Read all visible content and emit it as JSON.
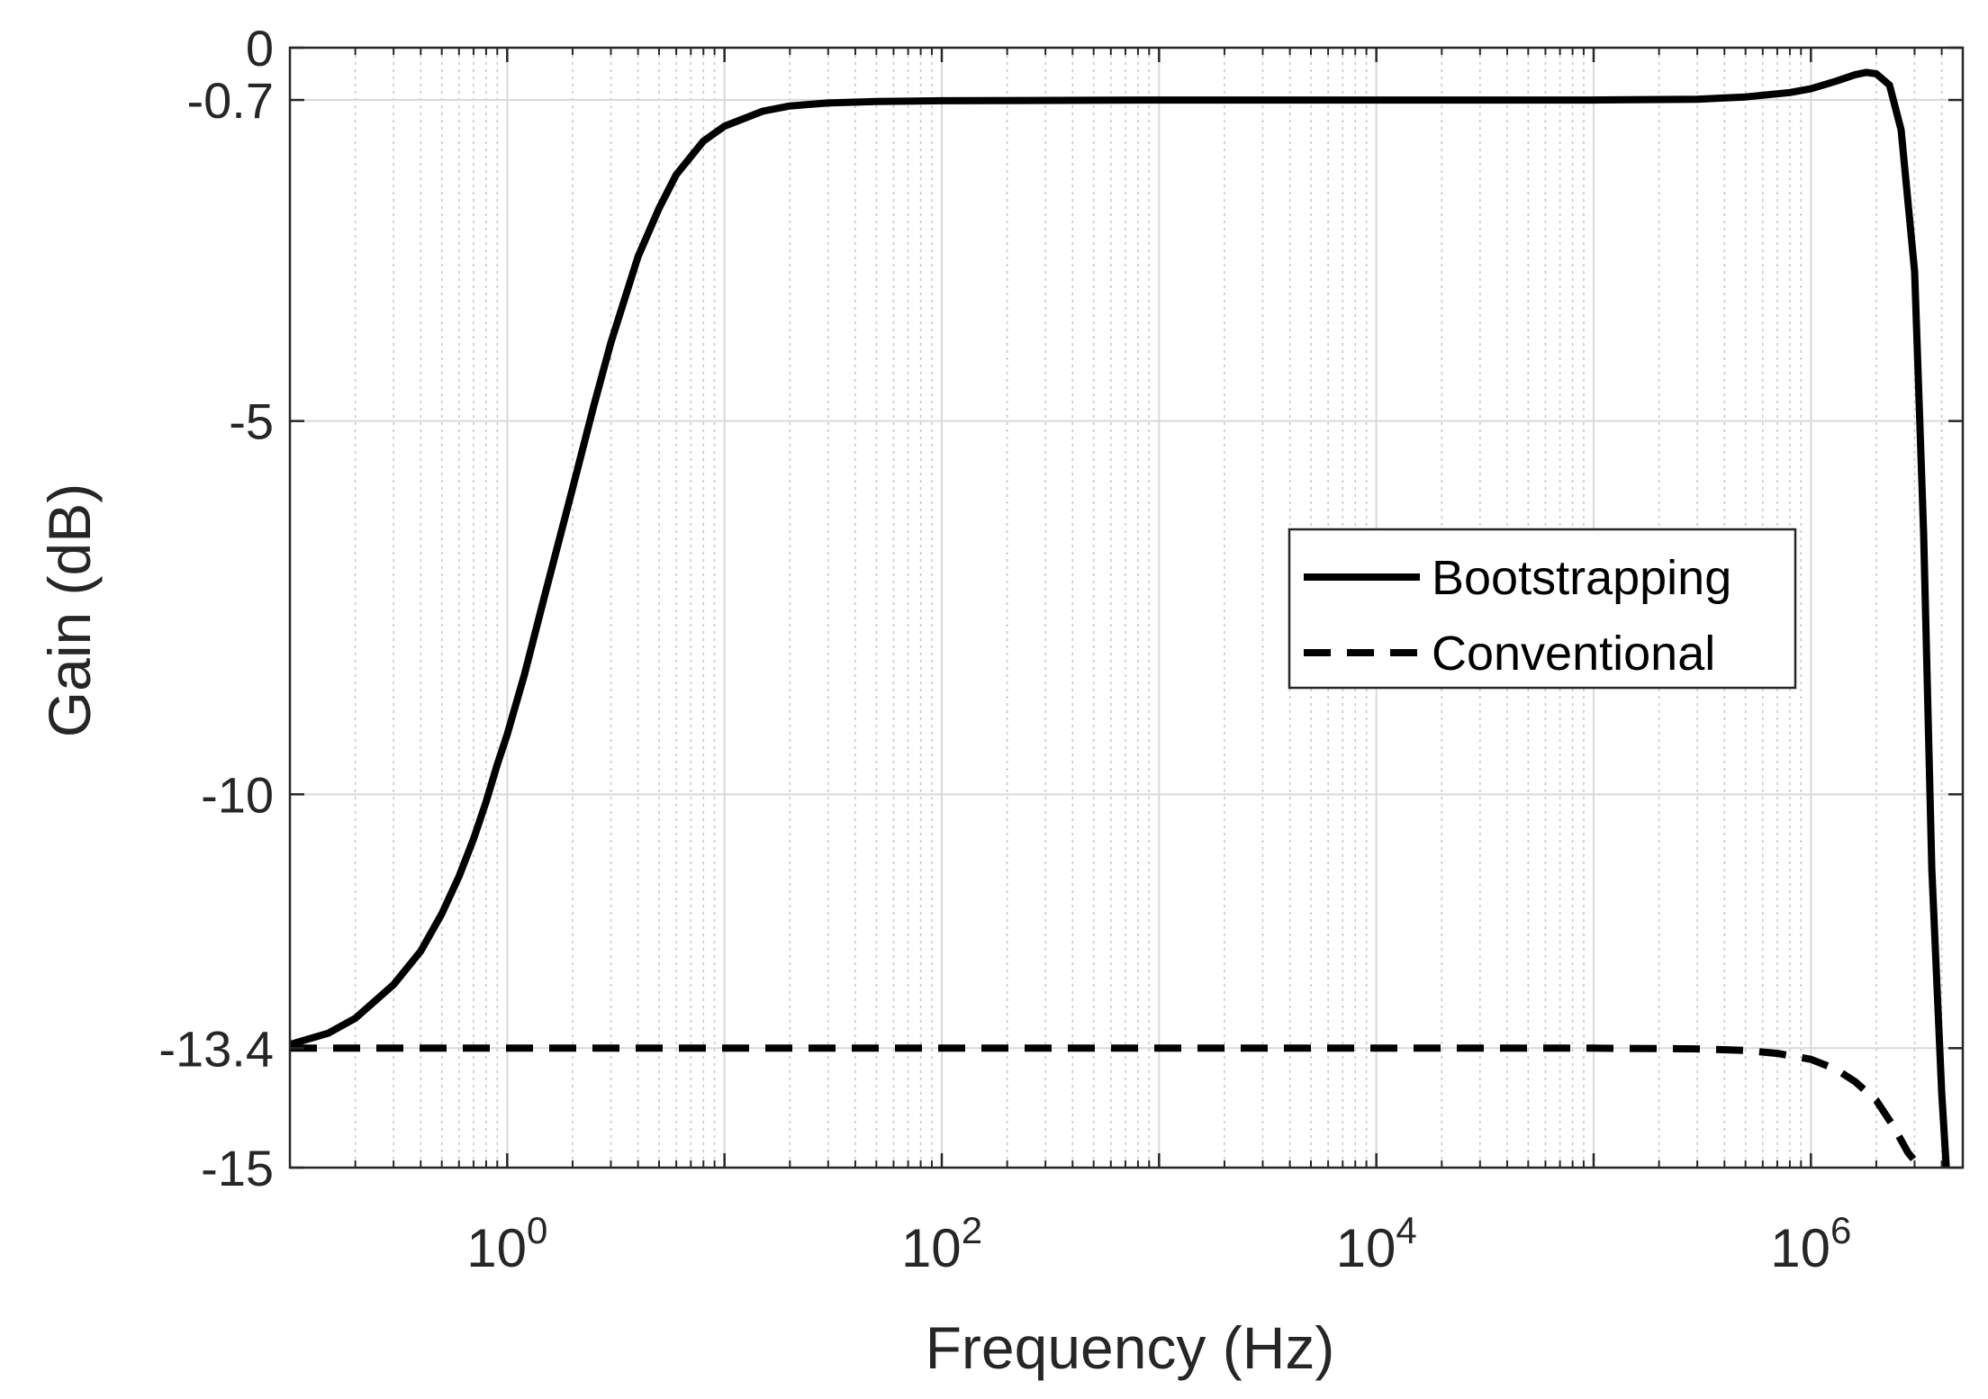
{
  "chart_data": {
    "type": "line",
    "title": "",
    "xlabel": "Frequency (Hz)",
    "ylabel": "Gain (dB)",
    "x_scale": "log",
    "xlim": [
      0.1,
      5000000
    ],
    "ylim": [
      -15,
      0
    ],
    "x_ticks": [
      {
        "value": 1,
        "base": "10",
        "exp": "0"
      },
      {
        "value": 100,
        "base": "10",
        "exp": "2"
      },
      {
        "value": 10000,
        "base": "10",
        "exp": "4"
      },
      {
        "value": 1000000,
        "base": "10",
        "exp": "6"
      }
    ],
    "y_ticks": [
      {
        "value": 0,
        "label": "0"
      },
      {
        "value": -0.7,
        "label": "-0.7"
      },
      {
        "value": -5,
        "label": "-5"
      },
      {
        "value": -10,
        "label": "-10"
      },
      {
        "value": -13.4,
        "label": "-13.4"
      },
      {
        "value": -15,
        "label": "-15"
      }
    ],
    "grid": true,
    "legend_position": "center-right",
    "series": [
      {
        "name": "Bootstrapping",
        "style": "solid",
        "color": "#000000",
        "x": [
          0.1,
          0.15,
          0.2,
          0.3,
          0.4,
          0.5,
          0.6,
          0.7,
          0.8,
          0.9,
          1,
          1.2,
          1.5,
          2,
          2.5,
          3,
          4,
          5,
          6,
          8,
          10,
          15,
          20,
          30,
          50,
          100,
          1000,
          10000,
          100000,
          300000,
          500000,
          800000,
          1000000,
          1300000,
          1600000,
          1800000,
          2000000,
          2300000,
          2600000,
          3000000,
          3300000,
          3600000,
          4000000,
          4200000
        ],
        "y": [
          -13.35,
          -13.2,
          -13.0,
          -12.55,
          -12.1,
          -11.6,
          -11.1,
          -10.6,
          -10.1,
          -9.6,
          -9.2,
          -8.4,
          -7.3,
          -5.9,
          -4.8,
          -3.95,
          -2.8,
          -2.15,
          -1.7,
          -1.25,
          -1.05,
          -0.85,
          -0.78,
          -0.74,
          -0.72,
          -0.71,
          -0.7,
          -0.7,
          -0.7,
          -0.69,
          -0.66,
          -0.6,
          -0.55,
          -0.45,
          -0.36,
          -0.33,
          -0.35,
          -0.5,
          -1.1,
          -3.0,
          -6.5,
          -11.0,
          -14.0,
          -15.0
        ]
      },
      {
        "name": "Conventional",
        "style": "dashed",
        "color": "#000000",
        "x": [
          0.1,
          1,
          10,
          100,
          1000,
          10000,
          100000,
          300000,
          500000,
          700000,
          1000000,
          1300000,
          1600000,
          2000000,
          2400000,
          2800000,
          3200000
        ],
        "y": [
          -13.4,
          -13.4,
          -13.4,
          -13.4,
          -13.4,
          -13.4,
          -13.4,
          -13.41,
          -13.43,
          -13.47,
          -13.55,
          -13.68,
          -13.85,
          -14.1,
          -14.45,
          -14.8,
          -15.0
        ]
      }
    ]
  }
}
